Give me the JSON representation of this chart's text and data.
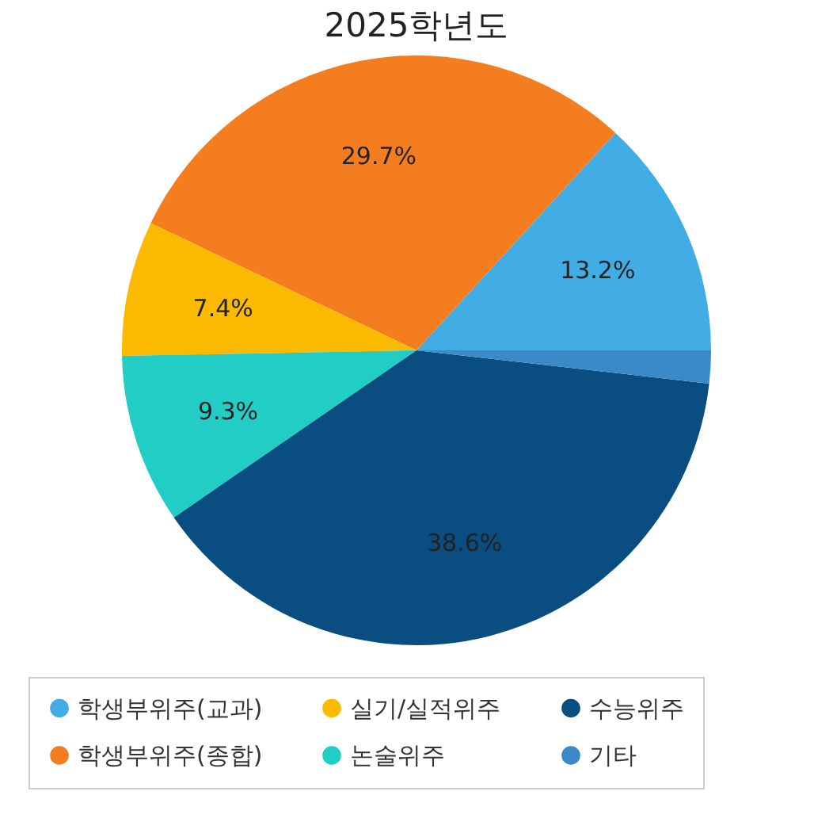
{
  "chart_data": {
    "type": "pie",
    "title": "2025학년도",
    "categories": [
      "학생부위주(교과)",
      "학생부위주(종합)",
      "실기/실적위주",
      "논술위주",
      "수능위주",
      "기타"
    ],
    "values": [
      13.2,
      29.7,
      7.4,
      9.3,
      38.6,
      1.8
    ],
    "value_labels": [
      "13.2%",
      "29.7%",
      "7.4%",
      "9.3%",
      "38.6%",
      null
    ],
    "colors": [
      "#41ade4",
      "#f47d1f",
      "#fbb900",
      "#22cdc5",
      "#0a4d80",
      "#3a8ac7"
    ],
    "legend": "bottom"
  }
}
